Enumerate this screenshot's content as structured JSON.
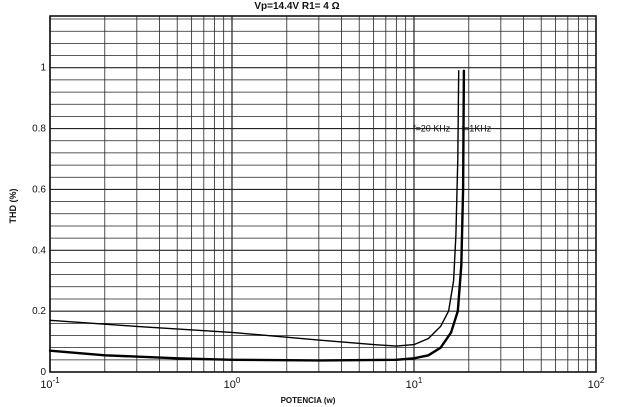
{
  "chart_data": {
    "type": "line",
    "title": "Vp=14.4V R1= 4 Ω",
    "xlabel": "POTENCIA (w)",
    "ylabel": "THD    (%)",
    "x_scale": "log",
    "xlim": [
      0.1,
      100
    ],
    "ylim": [
      0,
      1.17
    ],
    "grid": true,
    "x_ticks": [
      {
        "value": 0.1,
        "base": "10",
        "exp": "-1"
      },
      {
        "value": 1,
        "base": "10",
        "exp": "0"
      },
      {
        "value": 10,
        "base": "10",
        "exp": "1"
      },
      {
        "value": 100,
        "base": "10",
        "exp": "2"
      }
    ],
    "y_ticks": [
      {
        "value": 0,
        "label": "0"
      },
      {
        "value": 0.2,
        "label": "0.2"
      },
      {
        "value": 0.4,
        "label": "0.4"
      },
      {
        "value": 0.6,
        "label": "0.6"
      },
      {
        "value": 0.8,
        "label": "0.8"
      },
      {
        "value": 1,
        "label": "1"
      }
    ],
    "annotations": [
      {
        "text": "f=20 KHz",
        "x": 12.5,
        "y": 0.8
      },
      {
        "text": "f=1KHz",
        "x": 22,
        "y": 0.8
      }
    ],
    "series": [
      {
        "name": "f=20 KHz",
        "stroke_width": 1.4,
        "points": [
          [
            0.1,
            0.17
          ],
          [
            0.3,
            0.15
          ],
          [
            1,
            0.13
          ],
          [
            3,
            0.105
          ],
          [
            6,
            0.09
          ],
          [
            8,
            0.085
          ],
          [
            10,
            0.09
          ],
          [
            12,
            0.11
          ],
          [
            14,
            0.15
          ],
          [
            15.5,
            0.2
          ],
          [
            16.5,
            0.3
          ],
          [
            17,
            0.45
          ],
          [
            17.4,
            0.7
          ],
          [
            17.6,
            0.99
          ]
        ]
      },
      {
        "name": "f=1KHz",
        "stroke_width": 2.4,
        "points": [
          [
            0.1,
            0.07
          ],
          [
            0.2,
            0.055
          ],
          [
            0.5,
            0.045
          ],
          [
            1,
            0.04
          ],
          [
            3,
            0.038
          ],
          [
            8,
            0.04
          ],
          [
            10,
            0.045
          ],
          [
            12,
            0.055
          ],
          [
            14,
            0.08
          ],
          [
            16,
            0.13
          ],
          [
            17.4,
            0.2
          ],
          [
            18.2,
            0.35
          ],
          [
            18.6,
            0.6
          ],
          [
            18.8,
            0.99
          ]
        ]
      }
    ]
  }
}
